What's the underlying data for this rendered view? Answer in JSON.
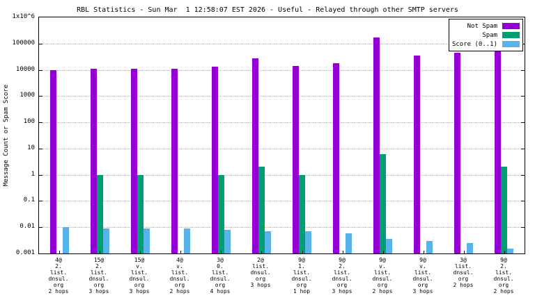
{
  "chart": {
    "title": "RBL Statistics - Sun Mar  1 12:58:07 EST 2026 - Useful - Relayed through other SMTP servers",
    "ylabel": "Message Count or Spam Score"
  },
  "chart_data": {
    "type": "bar",
    "log_y": true,
    "ylim": [
      0.001,
      1000000
    ],
    "ytick_labels": [
      "1x10^6",
      "100000",
      "10000",
      "1000",
      "100",
      "10",
      "1",
      "0.1",
      "0.01",
      "0.001"
    ],
    "grid": true,
    "legend_position": "top-right",
    "categories": [
      [
        "4@",
        "2.",
        "list.",
        "dnsul.",
        "org",
        "2 hops"
      ],
      [
        "15@",
        "2.",
        "list.",
        "dnsul.",
        "org",
        "3 hops"
      ],
      [
        "15@",
        "v.",
        "list.",
        "dnsul.",
        "org",
        "3 hops"
      ],
      [
        "4@",
        "v.",
        "list.",
        "dnsul.",
        "org",
        "2 hops"
      ],
      [
        "3@",
        "0.",
        "list.",
        "dnsul.",
        "org",
        "4 hops"
      ],
      [
        "2@",
        "list.",
        "dnsul.",
        "org",
        "3 hops"
      ],
      [
        "9@",
        "1.",
        "list.",
        "dnsul.",
        "org",
        "1 hop"
      ],
      [
        "9@",
        "2.",
        "list.",
        "dnsul.",
        "org",
        "3 hops"
      ],
      [
        "9@",
        "v.",
        "list.",
        "dnsul.",
        "org",
        "2 hops"
      ],
      [
        "9@",
        "v.",
        "list.",
        "dnsul.",
        "org",
        "3 hops"
      ],
      [
        "3@",
        "list.",
        "dnsul.",
        "org",
        "2 hops"
      ],
      [
        "9@",
        "2.",
        "list.",
        "dnsul.",
        "org",
        "2 hops"
      ]
    ],
    "series": [
      {
        "name": "Not Spam",
        "color": "#9400d3",
        "values": [
          10000,
          11000,
          11000,
          11000,
          13000,
          28000,
          14000,
          18000,
          170000,
          35000,
          45000,
          130000
        ]
      },
      {
        "name": "Spam",
        "color": "#009e73",
        "values": [
          null,
          1,
          1,
          null,
          1,
          2,
          1,
          null,
          6,
          null,
          null,
          2
        ]
      },
      {
        "name": "Score (0..1)",
        "color": "#56b4e9",
        "values": [
          0.01,
          0.009,
          0.009,
          0.009,
          0.008,
          0.007,
          0.007,
          0.006,
          0.0035,
          0.003,
          0.0025,
          0.0015
        ]
      }
    ]
  }
}
